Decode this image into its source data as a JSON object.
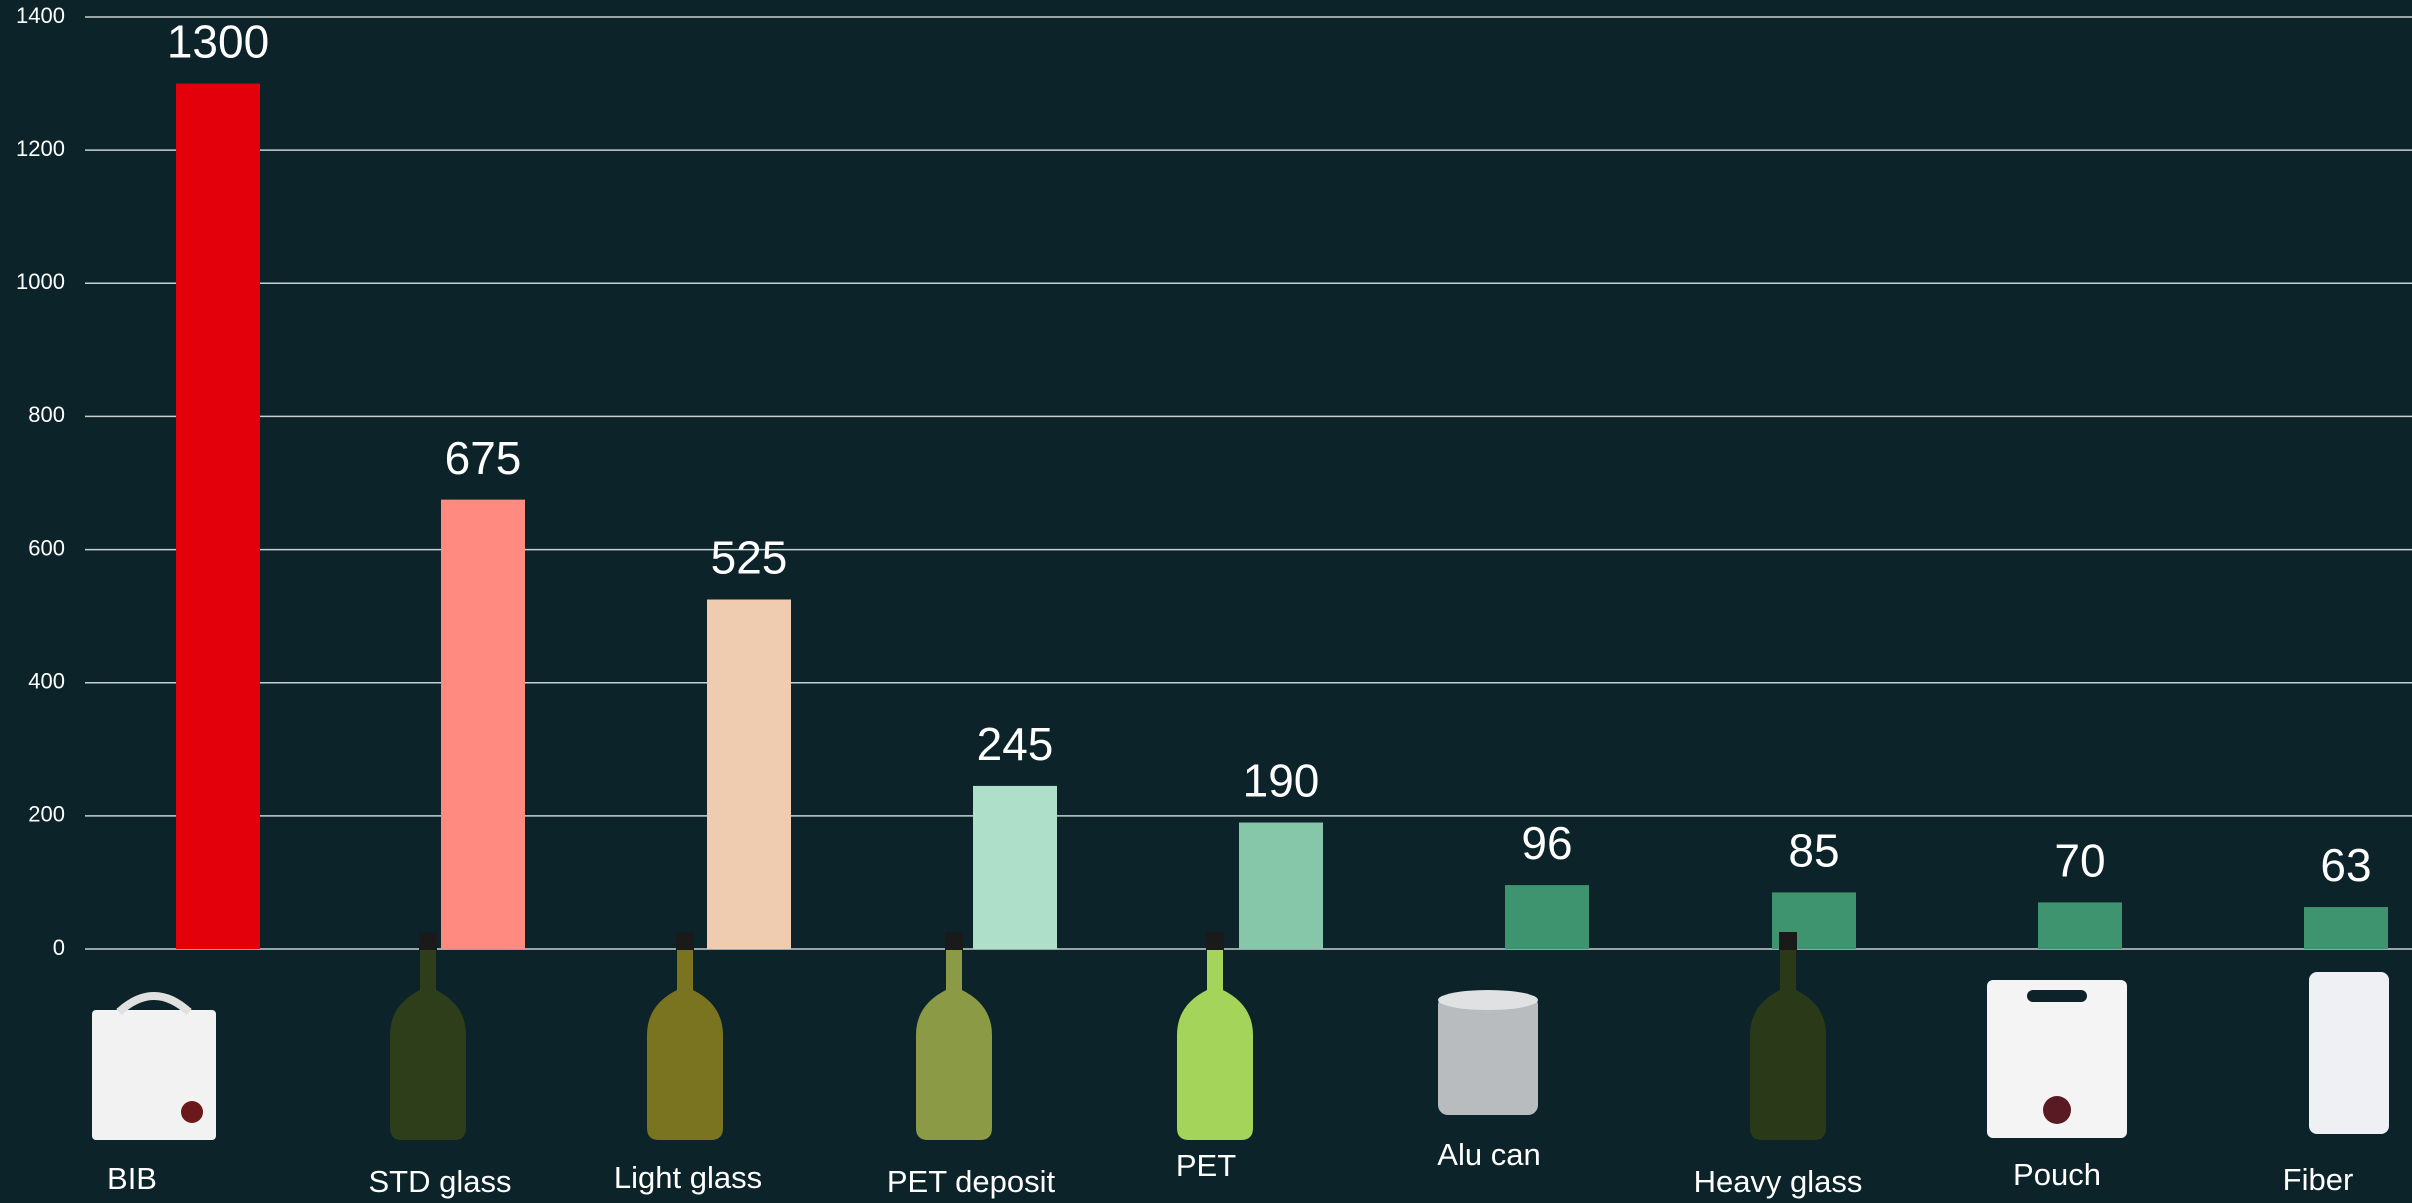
{
  "chart_data": {
    "type": "bar",
    "categories": [
      "BIB",
      "STD glass",
      "Light glass",
      "PET deposit",
      "PET",
      "Alu can",
      "Heavy glass",
      "Pouch",
      "Fiber"
    ],
    "values": [
      1300,
      675,
      525,
      245,
      190,
      96,
      85,
      70,
      63
    ],
    "colors": [
      "#e3000b",
      "#ff8a80",
      "#efcbb0",
      "#addfc9",
      "#86c7aa",
      "#3f9470",
      "#3f9470",
      "#3f9470",
      "#3f9470"
    ],
    "ylim": [
      0,
      1400
    ],
    "yticks": [
      0,
      200,
      400,
      600,
      800,
      1000,
      1200,
      1400
    ],
    "grid": true
  }
}
